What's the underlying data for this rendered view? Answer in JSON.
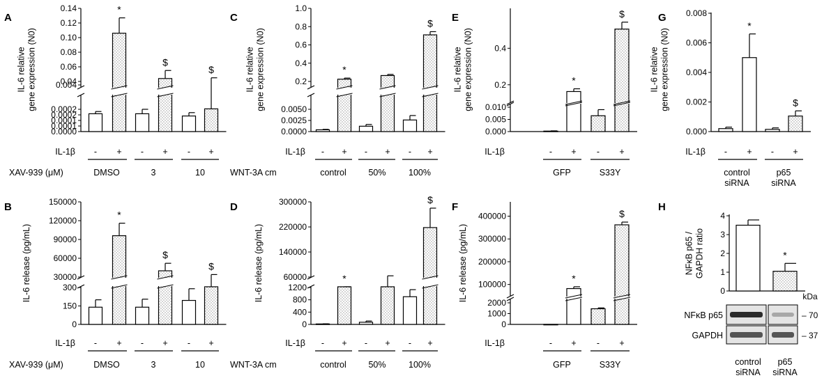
{
  "chart_data": [
    {
      "id": "A",
      "type": "bar",
      "panel_label": "A",
      "ylabel": [
        "IL-6 relative",
        "gene expression (N0)"
      ],
      "segments": [
        {
          "ylim": [
            0,
            0.0002
          ],
          "ticks": [
            "0.0000",
            "0.0001",
            "0.0001",
            "0.0002",
            "0.0002"
          ],
          "tickvals": [
            0,
            5e-05,
            0.0001,
            0.00015,
            0.0002
          ]
        },
        {
          "ylim": [
            0.04,
            0.14
          ],
          "ticks": [
            "0.04",
            "0.06",
            "0.08",
            "0.10",
            "0.12",
            "0.14"
          ],
          "tickvals": [
            0.04,
            0.06,
            0.08,
            0.1,
            0.12,
            0.14
          ],
          "extra": [
            {
              "label": "0.004",
              "v": 0.004
            }
          ]
        }
      ],
      "group_label": "XAV-939 (μM)",
      "stim_label": "IL-1β",
      "groups": [
        "DMSO",
        "3",
        "10"
      ],
      "signs": [
        "-",
        "+"
      ],
      "bars": [
        {
          "v": 0.00016,
          "e": 2e-05,
          "t": "open",
          "m": ""
        },
        {
          "v": 0.106,
          "e": 0.021,
          "t": "dot",
          "m": "*"
        },
        {
          "v": 0.00016,
          "e": 4e-05,
          "t": "open",
          "m": ""
        },
        {
          "v": 0.044,
          "e": 0.011,
          "t": "dot",
          "m": "$"
        },
        {
          "v": 0.00014,
          "e": 3e-05,
          "t": "open",
          "m": ""
        },
        {
          "v": 0.038,
          "e": 0.007,
          "t": "dot",
          "m": "$"
        }
      ]
    },
    {
      "id": "B",
      "type": "bar",
      "panel_label": "B",
      "ylabel": [
        "IL-6 release (pg/mL)"
      ],
      "segments": [
        {
          "ylim": [
            0,
            300
          ],
          "ticks": [
            "0",
            "150",
            "300"
          ],
          "tickvals": [
            0,
            150,
            300
          ]
        },
        {
          "ylim": [
            30000,
            150000
          ],
          "ticks": [
            "30000",
            "60000",
            "90000",
            "120000",
            "150000"
          ],
          "tickvals": [
            30000,
            60000,
            90000,
            120000,
            150000
          ]
        }
      ],
      "group_label": "XAV-939 (μM)",
      "stim_label": "IL-1β",
      "groups": [
        "DMSO",
        "3",
        "10"
      ],
      "signs": [
        "-",
        "+"
      ],
      "bars": [
        {
          "v": 140,
          "e": 60,
          "t": "open",
          "m": ""
        },
        {
          "v": 96000,
          "e": 20000,
          "t": "dot",
          "m": "*"
        },
        {
          "v": 140,
          "e": 65,
          "t": "open",
          "m": ""
        },
        {
          "v": 40000,
          "e": 12000,
          "t": "dot",
          "m": "$"
        },
        {
          "v": 195,
          "e": 95,
          "t": "open",
          "m": ""
        },
        {
          "v": 29000,
          "e": 5000,
          "t": "dot",
          "m": "$"
        }
      ]
    },
    {
      "id": "C",
      "type": "bar",
      "panel_label": "C",
      "ylabel": [
        "IL-6 relative",
        "gene expression (N0)"
      ],
      "segments": [
        {
          "ylim": [
            0,
            0.005
          ],
          "ticks": [
            "0.0000",
            "0.0025",
            "0.0050"
          ],
          "tickvals": [
            0,
            0.0025,
            0.005
          ]
        },
        {
          "ylim": [
            0.2,
            1.0
          ],
          "ticks": [
            "0.2",
            "0.4",
            "0.6",
            "0.8",
            "1.0"
          ],
          "tickvals": [
            0.2,
            0.4,
            0.6,
            0.8,
            1.0
          ]
        }
      ],
      "group_label": "WNT-3A cm",
      "stim_label": "IL-1β",
      "groups": [
        "control",
        "50%",
        "100%"
      ],
      "signs": [
        "-",
        "+"
      ],
      "bars": [
        {
          "v": 0.0004,
          "e": 0.0001,
          "t": "open",
          "m": ""
        },
        {
          "v": 0.225,
          "e": 0.012,
          "t": "dot",
          "m": "*"
        },
        {
          "v": 0.0012,
          "e": 0.0004,
          "t": "open",
          "m": ""
        },
        {
          "v": 0.265,
          "e": 0.012,
          "t": "dot",
          "m": ""
        },
        {
          "v": 0.0026,
          "e": 0.001,
          "t": "open",
          "m": ""
        },
        {
          "v": 0.71,
          "e": 0.035,
          "t": "dot",
          "m": "$"
        }
      ]
    },
    {
      "id": "D",
      "type": "bar",
      "panel_label": "D",
      "ylabel": [
        "IL-6 release (pg/mL)"
      ],
      "segments": [
        {
          "ylim": [
            0,
            1200
          ],
          "ticks": [
            "0",
            "400",
            "800",
            "1200"
          ],
          "tickvals": [
            0,
            400,
            800,
            1200
          ]
        },
        {
          "ylim": [
            60000,
            300000
          ],
          "ticks": [
            "60000",
            "140000",
            "220000",
            "300000"
          ],
          "tickvals": [
            60000,
            140000,
            220000,
            300000
          ]
        }
      ],
      "group_label": "WNT-3A cm",
      "stim_label": "IL-1β",
      "groups": [
        "control",
        "50%",
        "100%"
      ],
      "signs": [
        "-",
        "+"
      ],
      "bars": [
        {
          "v": 15,
          "e": 5,
          "t": "open",
          "m": ""
        },
        {
          "v": 42000,
          "e": 5000,
          "t": "dot",
          "m": "*"
        },
        {
          "v": 70,
          "e": 40,
          "t": "open",
          "m": ""
        },
        {
          "v": 57000,
          "e": 7000,
          "t": "dot",
          "m": ""
        },
        {
          "v": 900,
          "e": 230,
          "t": "open",
          "m": ""
        },
        {
          "v": 218000,
          "e": 62000,
          "t": "dot",
          "m": "$"
        }
      ]
    },
    {
      "id": "E",
      "type": "bar",
      "panel_label": "E",
      "ylabel": [
        "IL-6 relative",
        "gene expression (N0)"
      ],
      "segments": [
        {
          "ylim": [
            0,
            0.01
          ],
          "ticks": [
            "0.000",
            "0.005",
            "0.010"
          ],
          "tickvals": [
            0,
            0.005,
            0.01
          ]
        },
        {
          "ylim": [
            0.1,
            0.55
          ],
          "ticks": [
            "0.2",
            "0.4"
          ],
          "tickvals": [
            0.2,
            0.4
          ]
        }
      ],
      "group_label": "",
      "stim_label": "IL-1β",
      "groups": [
        "GFP",
        "S33Y"
      ],
      "signs": [
        "-",
        "+"
      ],
      "bars": [
        {
          "v": 0.0002,
          "e": 0.0001,
          "t": "open",
          "m": ""
        },
        {
          "v": 0.163,
          "e": 0.015,
          "t": "open",
          "m": "*"
        },
        {
          "v": 0.0065,
          "e": 0.0025,
          "t": "dot",
          "m": ""
        },
        {
          "v": 0.505,
          "e": 0.038,
          "t": "dot",
          "m": "$"
        }
      ]
    },
    {
      "id": "F",
      "type": "bar",
      "panel_label": "F",
      "ylabel": [
        "IL-6 release (pg/mL)"
      ],
      "segments": [
        {
          "ylim": [
            0,
            2000
          ],
          "ticks": [
            "0",
            "1000",
            "2000"
          ],
          "tickvals": [
            0,
            1000,
            2000
          ]
        },
        {
          "ylim": [
            50000,
            420000
          ],
          "ticks": [
            "100000",
            "200000",
            "300000",
            "400000"
          ],
          "tickvals": [
            100000,
            200000,
            300000,
            400000
          ]
        }
      ],
      "group_label": "",
      "stim_label": "IL-1β",
      "groups": [
        "GFP",
        "S33Y"
      ],
      "signs": [
        "-",
        "+"
      ],
      "bars": [
        {
          "v": 5,
          "e": 0,
          "t": "open",
          "m": ""
        },
        {
          "v": 82000,
          "e": 8000,
          "t": "open",
          "m": "*"
        },
        {
          "v": 1450,
          "e": 80,
          "t": "dot",
          "m": ""
        },
        {
          "v": 362000,
          "e": 12000,
          "t": "dot",
          "m": "$"
        }
      ]
    },
    {
      "id": "G",
      "type": "bar",
      "panel_label": "G",
      "ylabel": [
        "IL-6 relative",
        "gene expression (N0)"
      ],
      "segments": [
        {
          "ylim": [
            0,
            0.008
          ],
          "ticks": [
            "0.000",
            "0.002",
            "0.004",
            "0.006",
            "0.008"
          ],
          "tickvals": [
            0,
            0.002,
            0.004,
            0.006,
            0.008
          ]
        }
      ],
      "group_label": "",
      "stim_label": "IL-1β",
      "groups": [
        "control\nsiRNA",
        "p65\nsiRNA"
      ],
      "signs": [
        "-",
        "+"
      ],
      "bars": [
        {
          "v": 0.0002,
          "e": 0.0001,
          "t": "open",
          "m": ""
        },
        {
          "v": 0.005,
          "e": 0.0016,
          "t": "open",
          "m": "*"
        },
        {
          "v": 0.00015,
          "e": 0.0001,
          "t": "open",
          "m": ""
        },
        {
          "v": 0.00105,
          "e": 0.00035,
          "t": "dot",
          "m": "$"
        }
      ]
    },
    {
      "id": "H",
      "type": "bar",
      "panel_label": "H",
      "ylabel": [
        "NFκB p65 /",
        "GAPDH ratio"
      ],
      "segments": [
        {
          "ylim": [
            0,
            4
          ],
          "ticks": [
            "0",
            "1",
            "2",
            "3",
            "4"
          ],
          "tickvals": [
            0,
            1,
            2,
            3,
            4
          ]
        }
      ],
      "group_label": "",
      "stim_label": "",
      "groups": [
        "control\nsiRNA",
        "p65\nsiRNA"
      ],
      "signs": [],
      "bars": [
        {
          "v": 3.5,
          "e": 0.28,
          "t": "open",
          "m": ""
        },
        {
          "v": 1.05,
          "e": 0.42,
          "t": "dot",
          "m": "*"
        }
      ]
    }
  ],
  "western_blot": {
    "kda_label": "kDa",
    "rows": [
      {
        "label": "NFκB p65",
        "kda": "– 70"
      },
      {
        "label": "GAPDH",
        "kda": "– 37"
      }
    ]
  }
}
